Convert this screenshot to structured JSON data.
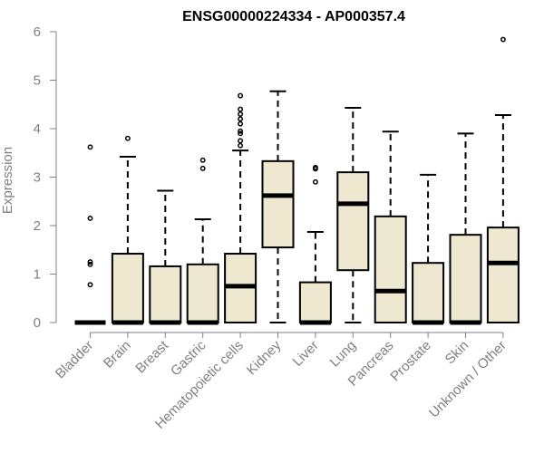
{
  "chart_data": {
    "type": "boxplot",
    "title": "ENSG00000224334 - AP000357.4",
    "ylabel": "Expression",
    "xlabel": "",
    "ylim": [
      0,
      6
    ],
    "y_ticks": [
      0,
      1,
      2,
      3,
      4,
      5,
      6
    ],
    "categories": [
      "Bladder",
      "Brain",
      "Breast",
      "Gastric",
      "Hematopoietic cells",
      "Kidney",
      "Liver",
      "Lung",
      "Pancreas",
      "Prostate",
      "Skin",
      "Unknown / Other"
    ],
    "boxes": [
      {
        "category": "Bladder",
        "whisker_low": 0,
        "q1": 0,
        "median": 0,
        "q3": 0,
        "whisker_high": 0,
        "outliers": [
          0.78,
          1.2,
          1.25,
          2.15,
          3.62
        ]
      },
      {
        "category": "Brain",
        "whisker_low": 0,
        "q1": 0,
        "median": 0,
        "q3": 1.42,
        "whisker_high": 3.42,
        "outliers": [
          3.8
        ]
      },
      {
        "category": "Breast",
        "whisker_low": 0,
        "q1": 0,
        "median": 0,
        "q3": 1.16,
        "whisker_high": 2.72,
        "outliers": []
      },
      {
        "category": "Gastric",
        "whisker_low": 0,
        "q1": 0,
        "median": 0,
        "q3": 1.2,
        "whisker_high": 2.13,
        "outliers": [
          3.18,
          3.35
        ]
      },
      {
        "category": "Hematopoietic cells",
        "whisker_low": 0,
        "q1": 0,
        "median": 0.75,
        "q3": 1.42,
        "whisker_high": 3.55,
        "outliers": [
          3.65,
          3.75,
          3.9,
          3.95,
          4.1,
          4.2,
          4.3,
          4.4,
          4.68
        ]
      },
      {
        "category": "Kidney",
        "whisker_low": 0,
        "q1": 1.55,
        "median": 2.62,
        "q3": 3.33,
        "whisker_high": 4.77,
        "outliers": []
      },
      {
        "category": "Liver",
        "whisker_low": 0,
        "q1": 0,
        "median": 0,
        "q3": 0.83,
        "whisker_high": 1.87,
        "outliers": [
          2.9,
          3.17,
          3.2
        ]
      },
      {
        "category": "Lung",
        "whisker_low": 0,
        "q1": 1.08,
        "median": 2.45,
        "q3": 3.1,
        "whisker_high": 4.43,
        "outliers": []
      },
      {
        "category": "Pancreas",
        "whisker_low": 0,
        "q1": 0,
        "median": 0.65,
        "q3": 2.19,
        "whisker_high": 3.94,
        "outliers": []
      },
      {
        "category": "Prostate",
        "whisker_low": 0,
        "q1": 0,
        "median": 0,
        "q3": 1.23,
        "whisker_high": 3.05,
        "outliers": []
      },
      {
        "category": "Skin",
        "whisker_low": 0,
        "q1": 0,
        "median": 0,
        "q3": 1.81,
        "whisker_high": 3.9,
        "outliers": []
      },
      {
        "category": "Unknown / Other",
        "whisker_low": 0,
        "q1": 0,
        "median": 1.23,
        "q3": 1.96,
        "whisker_high": 4.28,
        "outliers": [
          5.84
        ]
      }
    ],
    "box_fill": "#eee8d0",
    "box_stroke": "#000000",
    "axis_color": "#808080",
    "grid": false,
    "legend": "none"
  }
}
